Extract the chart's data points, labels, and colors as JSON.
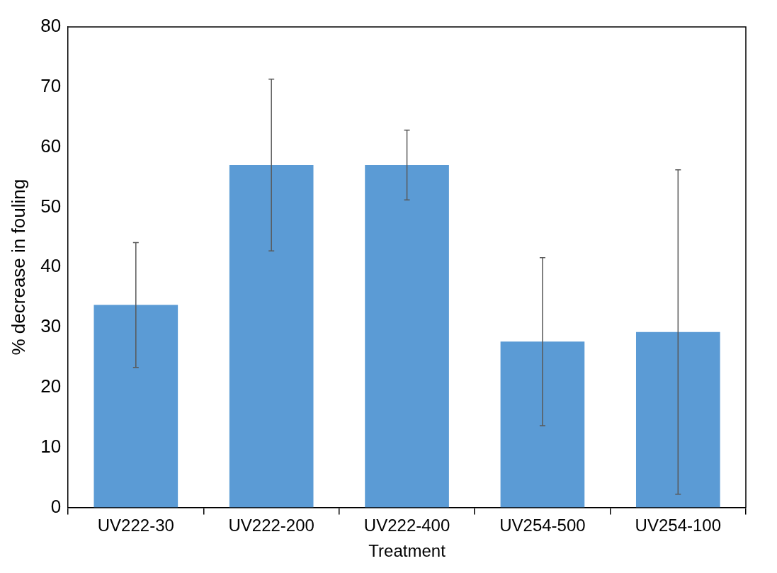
{
  "chart_data": {
    "type": "bar",
    "xlabel": "Treatment",
    "ylabel": "% decrease in fouling",
    "categories": [
      "UV222-30",
      "UV222-200",
      "UV222-400",
      "UV254-500",
      "UV254-100"
    ],
    "values": [
      33.7,
      57.0,
      57.0,
      27.6,
      29.2
    ],
    "errors": [
      10.4,
      14.3,
      5.8,
      14.0,
      27.0
    ],
    "color": "#5b9bd5",
    "ylim": [
      0,
      80
    ],
    "yticks": [
      0,
      10,
      20,
      30,
      40,
      50,
      60,
      70,
      80
    ],
    "grid": false,
    "legend": false
  }
}
